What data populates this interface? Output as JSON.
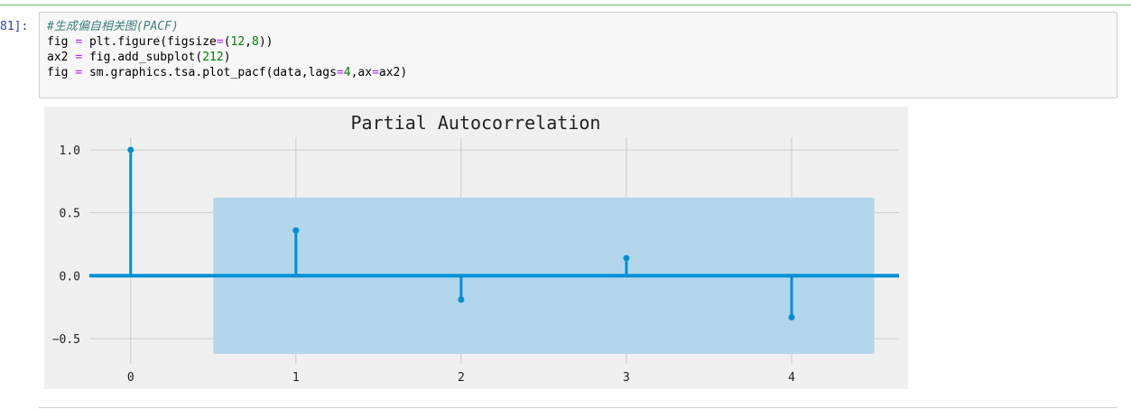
{
  "cell": {
    "prompt": "81]:",
    "code_lines": [
      [
        {
          "t": "#生成偏自相关图(PACF)",
          "c": "comment"
        }
      ],
      [
        {
          "t": "fig "
        },
        {
          "t": "=",
          "c": "op"
        },
        {
          "t": " plt.figure(figsize"
        },
        {
          "t": "=",
          "c": "op"
        },
        {
          "t": "("
        },
        {
          "t": "12",
          "c": "num"
        },
        {
          "t": ","
        },
        {
          "t": "8",
          "c": "num"
        },
        {
          "t": "))"
        }
      ],
      [
        {
          "t": "ax2 "
        },
        {
          "t": "=",
          "c": "op"
        },
        {
          "t": " fig.add_subplot("
        },
        {
          "t": "212",
          "c": "num"
        },
        {
          "t": ")"
        }
      ],
      [
        {
          "t": "fig "
        },
        {
          "t": "=",
          "c": "op"
        },
        {
          "t": " sm.graphics.tsa.plot_pacf(data,lags"
        },
        {
          "t": "=",
          "c": "op"
        },
        {
          "t": "4",
          "c": "num"
        },
        {
          "t": ",ax"
        },
        {
          "t": "=",
          "c": "op"
        },
        {
          "t": "ax2)"
        }
      ]
    ]
  },
  "chart_data": {
    "type": "stem",
    "title": "Partial Autocorrelation",
    "xlabel": "",
    "ylabel": "",
    "x": [
      0,
      1,
      2,
      3,
      4
    ],
    "values": [
      1.0,
      0.36,
      -0.19,
      0.14,
      -0.33
    ],
    "xticks": [
      "0",
      "1",
      "2",
      "3",
      "4"
    ],
    "yticks": [
      "1.0",
      "0.5",
      "0.0",
      "−0.5"
    ],
    "ytick_values": [
      1.0,
      0.5,
      0.0,
      -0.5
    ],
    "xlim": [
      -0.25,
      4.65
    ],
    "ylim": [
      -0.7,
      1.1
    ],
    "confidence_band": {
      "x_from": 0.5,
      "x_to": 4.5,
      "lower": -0.62,
      "upper": 0.62
    },
    "grid": true,
    "colors": {
      "stem": "#008fd5",
      "band": "#b3d6ea",
      "plot_bg": "#f0f0f0",
      "grid": "#cbcbcb",
      "text": "#222222"
    }
  }
}
